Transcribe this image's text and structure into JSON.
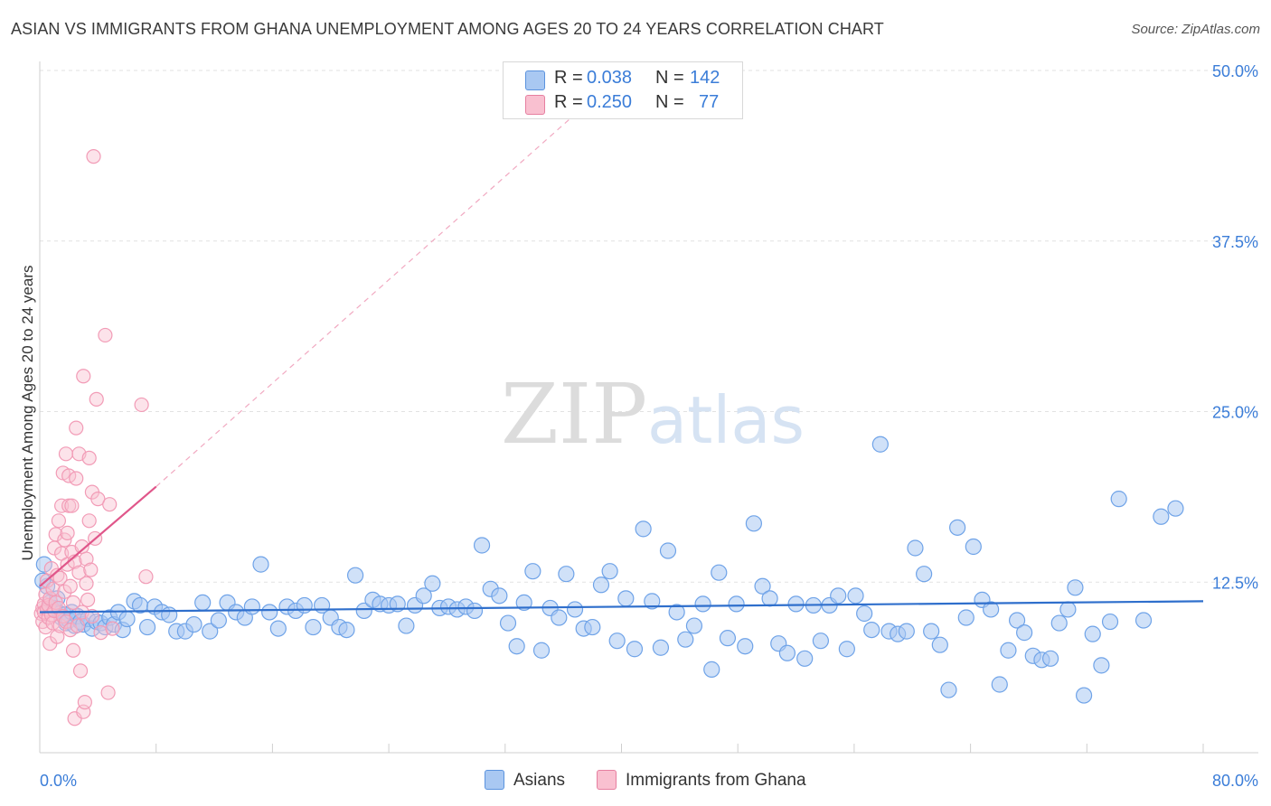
{
  "title": "ASIAN VS IMMIGRANTS FROM GHANA UNEMPLOYMENT AMONG AGES 20 TO 24 YEARS CORRELATION CHART",
  "source": "Source: ZipAtlas.com",
  "watermark": {
    "zip": "ZIP",
    "atlas": "atlas"
  },
  "legend": {
    "rows": [
      {
        "r_label": "R =",
        "r_value": "0.038",
        "n_label": "N =",
        "n_value": "142",
        "color": "#a9c8f2",
        "border": "#5b93de"
      },
      {
        "r_label": "R =",
        "r_value": "0.250",
        "n_label": "N =",
        "n_value": "77",
        "color": "#f9c0d0",
        "border": "#e67fa0"
      }
    ]
  },
  "bottom_legend": [
    {
      "label": "Asians",
      "color": "#a9c8f2",
      "border": "#5b93de"
    },
    {
      "label": "Immigrants from Ghana",
      "color": "#f9c0d0",
      "border": "#e67fa0"
    }
  ],
  "chart_data": {
    "type": "scatter",
    "title": "ASIAN VS IMMIGRANTS FROM GHANA UNEMPLOYMENT AMONG AGES 20 TO 24 YEARS CORRELATION CHART",
    "xlabel": "",
    "ylabel": "Unemployment Among Ages 20 to 24 years",
    "xlim": [
      0,
      80
    ],
    "ylim": [
      0,
      50
    ],
    "x_tick_labels": [
      "0.0%",
      "80.0%"
    ],
    "y_ticks": [
      12.5,
      25.0,
      37.5,
      50.0
    ],
    "y_tick_labels": [
      "12.5%",
      "25.0%",
      "37.5%",
      "50.0%"
    ],
    "grid": true,
    "series": [
      {
        "name": "Asians",
        "color": "#6fa3e8",
        "trend": {
          "x": [
            0,
            80
          ],
          "y": [
            10.3,
            11.1
          ],
          "color": "#2f6fcc"
        },
        "points": [
          [
            0.3,
            13.8
          ],
          [
            0.5,
            12.2
          ],
          [
            0.7,
            11.0
          ],
          [
            0.9,
            10.5
          ],
          [
            1.0,
            10.6
          ],
          [
            1.2,
            11.3
          ],
          [
            1.4,
            10.2
          ],
          [
            1.5,
            9.9
          ],
          [
            1.7,
            10.1
          ],
          [
            1.8,
            9.5
          ],
          [
            2.0,
            9.7
          ],
          [
            2.2,
            10.3
          ],
          [
            2.4,
            9.3
          ],
          [
            2.6,
            10.0
          ],
          [
            2.8,
            9.6
          ],
          [
            3.0,
            9.4
          ],
          [
            3.3,
            9.8
          ],
          [
            3.6,
            9.1
          ],
          [
            3.9,
            9.6
          ],
          [
            4.2,
            9.5
          ],
          [
            4.5,
            9.2
          ],
          [
            4.8,
            9.9
          ],
          [
            5.1,
            9.4
          ],
          [
            5.4,
            10.3
          ],
          [
            5.7,
            9.0
          ],
          [
            6.0,
            9.8
          ],
          [
            6.5,
            11.1
          ],
          [
            6.9,
            10.8
          ],
          [
            7.4,
            9.2
          ],
          [
            7.9,
            10.7
          ],
          [
            8.4,
            10.3
          ],
          [
            8.9,
            10.1
          ],
          [
            9.4,
            8.9
          ],
          [
            10.0,
            8.9
          ],
          [
            10.6,
            9.4
          ],
          [
            11.2,
            11.0
          ],
          [
            11.7,
            8.9
          ],
          [
            12.3,
            9.7
          ],
          [
            12.9,
            11.0
          ],
          [
            13.5,
            10.3
          ],
          [
            14.1,
            9.9
          ],
          [
            14.6,
            10.7
          ],
          [
            15.2,
            13.8
          ],
          [
            15.8,
            10.3
          ],
          [
            16.4,
            9.1
          ],
          [
            17.0,
            10.7
          ],
          [
            17.6,
            10.4
          ],
          [
            18.2,
            10.8
          ],
          [
            18.8,
            9.2
          ],
          [
            19.4,
            10.8
          ],
          [
            20.0,
            9.9
          ],
          [
            20.6,
            9.2
          ],
          [
            21.1,
            9.0
          ],
          [
            21.7,
            13.0
          ],
          [
            22.3,
            10.4
          ],
          [
            22.9,
            11.2
          ],
          [
            23.4,
            10.9
          ],
          [
            24.0,
            10.8
          ],
          [
            24.6,
            10.9
          ],
          [
            25.2,
            9.3
          ],
          [
            25.8,
            10.8
          ],
          [
            26.4,
            11.5
          ],
          [
            27.0,
            12.4
          ],
          [
            27.5,
            10.6
          ],
          [
            28.1,
            10.7
          ],
          [
            28.7,
            10.5
          ],
          [
            29.3,
            10.7
          ],
          [
            29.9,
            10.4
          ],
          [
            30.4,
            15.2
          ],
          [
            31.0,
            12.0
          ],
          [
            31.6,
            11.5
          ],
          [
            32.2,
            9.5
          ],
          [
            32.8,
            7.8
          ],
          [
            33.3,
            11.0
          ],
          [
            33.9,
            13.3
          ],
          [
            34.5,
            7.5
          ],
          [
            35.1,
            10.6
          ],
          [
            35.7,
            9.9
          ],
          [
            36.2,
            13.1
          ],
          [
            36.8,
            10.5
          ],
          [
            37.4,
            9.1
          ],
          [
            38.0,
            9.2
          ],
          [
            38.6,
            12.3
          ],
          [
            39.2,
            13.3
          ],
          [
            39.7,
            8.2
          ],
          [
            40.3,
            11.3
          ],
          [
            40.9,
            7.6
          ],
          [
            41.5,
            16.4
          ],
          [
            42.1,
            11.1
          ],
          [
            42.7,
            7.7
          ],
          [
            43.2,
            14.8
          ],
          [
            43.8,
            10.3
          ],
          [
            44.4,
            8.3
          ],
          [
            45.0,
            9.3
          ],
          [
            45.6,
            10.9
          ],
          [
            46.2,
            6.1
          ],
          [
            46.7,
            13.2
          ],
          [
            47.3,
            8.4
          ],
          [
            47.9,
            10.9
          ],
          [
            48.5,
            7.8
          ],
          [
            49.1,
            16.8
          ],
          [
            49.7,
            12.2
          ],
          [
            50.2,
            11.3
          ],
          [
            50.8,
            8.0
          ],
          [
            51.4,
            7.3
          ],
          [
            52.0,
            10.9
          ],
          [
            52.6,
            6.9
          ],
          [
            53.2,
            10.8
          ],
          [
            53.7,
            8.2
          ],
          [
            54.3,
            10.8
          ],
          [
            54.9,
            11.5
          ],
          [
            55.5,
            7.6
          ],
          [
            56.1,
            11.5
          ],
          [
            56.7,
            10.2
          ],
          [
            57.2,
            9.0
          ],
          [
            57.8,
            22.6
          ],
          [
            58.4,
            8.9
          ],
          [
            59.0,
            8.7
          ],
          [
            59.6,
            8.9
          ],
          [
            60.2,
            15.0
          ],
          [
            60.8,
            13.1
          ],
          [
            61.3,
            8.9
          ],
          [
            61.9,
            7.9
          ],
          [
            62.5,
            4.6
          ],
          [
            63.1,
            16.5
          ],
          [
            63.7,
            9.9
          ],
          [
            64.2,
            15.1
          ],
          [
            64.8,
            11.2
          ],
          [
            65.4,
            10.5
          ],
          [
            66.0,
            5.0
          ],
          [
            66.6,
            7.5
          ],
          [
            67.2,
            9.7
          ],
          [
            67.7,
            8.8
          ],
          [
            68.3,
            7.1
          ],
          [
            68.9,
            6.8
          ],
          [
            69.5,
            6.9
          ],
          [
            70.1,
            9.5
          ],
          [
            70.7,
            10.5
          ],
          [
            71.2,
            12.1
          ],
          [
            71.8,
            4.2
          ],
          [
            72.4,
            8.7
          ],
          [
            73.0,
            6.4
          ],
          [
            73.6,
            9.6
          ],
          [
            74.2,
            18.6
          ],
          [
            75.9,
            9.7
          ],
          [
            77.1,
            17.3
          ],
          [
            78.1,
            17.9
          ],
          [
            0.2,
            12.6
          ]
        ]
      },
      {
        "name": "Immigrants from Ghana",
        "color": "#f29bb6",
        "trend": {
          "x": [
            0,
            8
          ],
          "y": [
            12.2,
            19.5
          ],
          "color": "#e0568a"
        },
        "trend_extension": {
          "x": [
            8,
            36.5
          ],
          "y": [
            19.5,
            46.5
          ]
        },
        "points": [
          [
            0.1,
            10.2
          ],
          [
            0.2,
            10.6
          ],
          [
            0.2,
            9.6
          ],
          [
            0.3,
            10.9
          ],
          [
            0.3,
            10.3
          ],
          [
            0.4,
            11.6
          ],
          [
            0.4,
            9.2
          ],
          [
            0.5,
            10.5
          ],
          [
            0.5,
            12.6
          ],
          [
            0.6,
            9.9
          ],
          [
            0.6,
            10.8
          ],
          [
            0.7,
            8.0
          ],
          [
            0.7,
            11.3
          ],
          [
            0.8,
            10.1
          ],
          [
            0.8,
            13.5
          ],
          [
            0.9,
            9.5
          ],
          [
            0.9,
            12.0
          ],
          [
            1.0,
            15.0
          ],
          [
            1.0,
            10.4
          ],
          [
            1.1,
            11.0
          ],
          [
            1.1,
            16.0
          ],
          [
            1.2,
            8.5
          ],
          [
            1.2,
            13.0
          ],
          [
            1.3,
            10.6
          ],
          [
            1.3,
            17.0
          ],
          [
            1.4,
            9.3
          ],
          [
            1.4,
            12.8
          ],
          [
            1.5,
            14.6
          ],
          [
            1.5,
            18.1
          ],
          [
            1.6,
            10.0
          ],
          [
            1.6,
            20.5
          ],
          [
            1.7,
            15.6
          ],
          [
            1.7,
            11.8
          ],
          [
            1.8,
            21.9
          ],
          [
            1.8,
            9.6
          ],
          [
            1.9,
            13.8
          ],
          [
            1.9,
            16.1
          ],
          [
            2.0,
            18.1
          ],
          [
            2.0,
            20.3
          ],
          [
            2.1,
            9.0
          ],
          [
            2.1,
            12.2
          ],
          [
            2.2,
            14.7
          ],
          [
            2.2,
            18.1
          ],
          [
            2.3,
            7.5
          ],
          [
            2.3,
            11.0
          ],
          [
            2.4,
            2.5
          ],
          [
            2.4,
            14.0
          ],
          [
            2.5,
            20.1
          ],
          [
            2.5,
            23.8
          ],
          [
            2.6,
            9.3
          ],
          [
            2.7,
            13.2
          ],
          [
            2.7,
            21.9
          ],
          [
            2.8,
            6.0
          ],
          [
            2.9,
            15.1
          ],
          [
            2.9,
            10.3
          ],
          [
            3.0,
            3.0
          ],
          [
            3.0,
            27.6
          ],
          [
            3.1,
            3.7
          ],
          [
            3.2,
            12.4
          ],
          [
            3.2,
            14.2
          ],
          [
            3.3,
            11.2
          ],
          [
            3.4,
            17.0
          ],
          [
            3.4,
            21.6
          ],
          [
            3.5,
            13.4
          ],
          [
            3.6,
            10.0
          ],
          [
            3.6,
            19.1
          ],
          [
            3.7,
            43.7
          ],
          [
            3.8,
            15.7
          ],
          [
            3.9,
            25.9
          ],
          [
            4.0,
            18.6
          ],
          [
            4.2,
            8.8
          ],
          [
            4.5,
            30.6
          ],
          [
            4.7,
            4.4
          ],
          [
            4.8,
            18.2
          ],
          [
            5.0,
            9.1
          ],
          [
            7.0,
            25.5
          ],
          [
            7.3,
            12.9
          ]
        ]
      }
    ]
  }
}
